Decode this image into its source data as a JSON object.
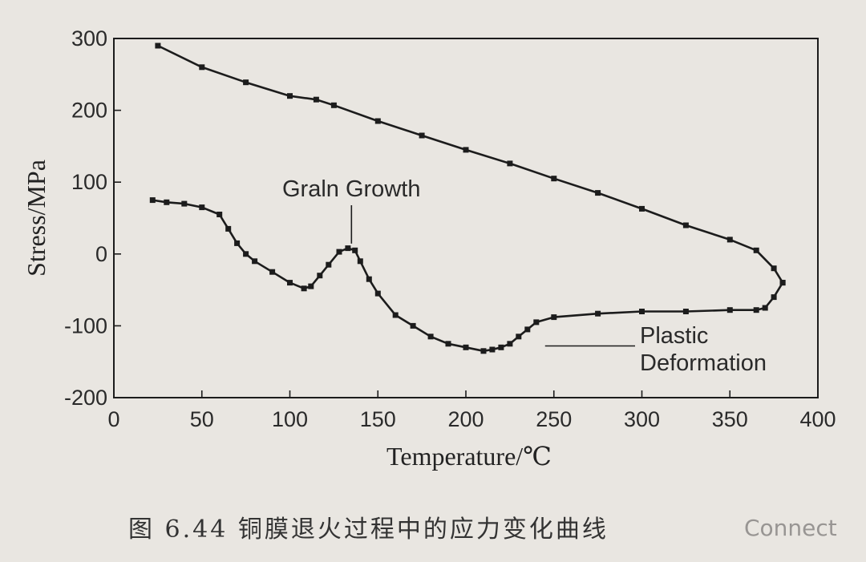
{
  "chart_data": {
    "type": "line",
    "xlabel": "Temperature/℃",
    "ylabel": "Stress/MPa",
    "xlim": [
      0,
      400
    ],
    "ylim": [
      -200,
      300
    ],
    "xticks": [
      0,
      50,
      100,
      150,
      200,
      250,
      300,
      350,
      400
    ],
    "yticks": [
      -200,
      -100,
      0,
      100,
      200,
      300
    ],
    "grid": false,
    "series": [
      {
        "x": [
          25,
          50,
          75,
          100,
          115,
          125,
          150,
          175,
          200,
          225,
          250,
          275,
          300,
          325,
          350,
          365,
          375,
          380
        ],
        "y": [
          290,
          260,
          239,
          220,
          215,
          207,
          185,
          165,
          145,
          126,
          105,
          85,
          63,
          40,
          20,
          5,
          -20,
          -40
        ]
      },
      {
        "x": [
          380,
          375,
          370,
          365,
          350,
          325,
          300,
          275,
          250,
          240,
          235,
          230,
          225,
          220,
          215,
          210,
          200,
          190,
          180,
          170,
          160,
          150,
          145,
          140,
          137,
          133,
          128,
          122,
          117,
          112,
          108,
          100,
          90,
          80,
          75,
          70,
          65,
          60,
          50,
          40,
          30,
          22
        ],
        "y": [
          -40,
          -60,
          -75,
          -78,
          -78,
          -80,
          -80,
          -83,
          -88,
          -95,
          -105,
          -115,
          -125,
          -130,
          -133,
          -135,
          -130,
          -125,
          -115,
          -100,
          -85,
          -55,
          -35,
          -10,
          5,
          8,
          3,
          -15,
          -30,
          -45,
          -48,
          -40,
          -25,
          -10,
          0,
          15,
          35,
          55,
          65,
          70,
          72,
          75
        ]
      }
    ],
    "annotations": [
      {
        "text": "Graln Growth",
        "x": 135,
        "y": 10
      },
      {
        "text": "Plastic",
        "x": 245,
        "y": -128
      },
      {
        "text": "Deformation",
        "x": 245,
        "y": -128
      }
    ]
  },
  "caption": "图 6.44  铜膜退火过程中的应力变化曲线",
  "watermark": "Connect",
  "colors": {
    "line": "#1c1c1c",
    "background": "#e9e6e1"
  }
}
